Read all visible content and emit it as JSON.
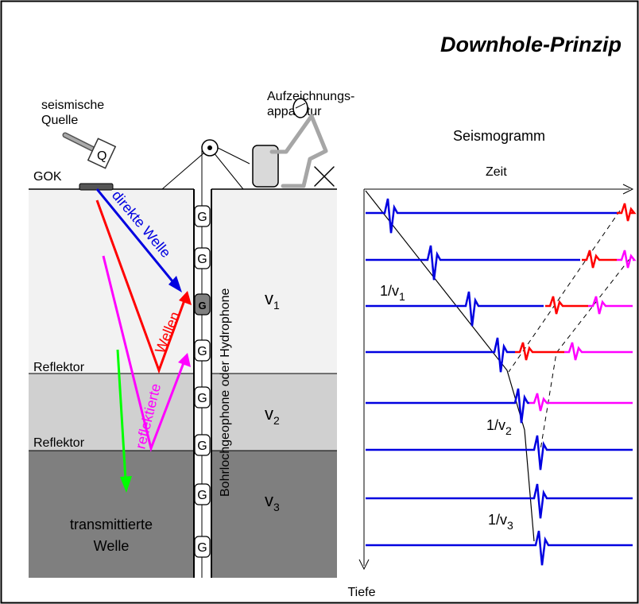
{
  "title": "Downhole-Prinzip",
  "source_label": {
    "line1": "seismische",
    "line2": "Quelle",
    "marker": "Q"
  },
  "recorder_label": {
    "line1": "Aufzeichnungs-",
    "line2": "apparatur"
  },
  "gok_label": "GOK",
  "reflector_label_1": "Reflektor",
  "reflector_label_2": "Reflektor",
  "direct_wave_label": "direkte Welle",
  "reflected_label_a": "Wellen",
  "reflected_label_b": "reflektierte",
  "transmitted_label": {
    "line1": "transmittierte",
    "line2": "Welle"
  },
  "borehole_label": "Bohrlochgeophone oder Hydrophone",
  "geophone_letter": "G",
  "layers": {
    "v1": {
      "base": "v",
      "sub": "1"
    },
    "v2": {
      "base": "v",
      "sub": "2"
    },
    "v3": {
      "base": "v",
      "sub": "3"
    }
  },
  "seismogram": {
    "title": "Seismogramm",
    "time_axis": "Zeit",
    "depth_axis": "Tiefe",
    "slope_labels": [
      {
        "base": "1/v",
        "sub": "1"
      },
      {
        "base": "1/v",
        "sub": "2"
      },
      {
        "base": "1/v",
        "sub": "3"
      }
    ]
  },
  "colors": {
    "direct": "#0000e0",
    "reflected": "#ff0000",
    "reflected2": "#ff00ff",
    "transmitted": "#00ff00",
    "layer1": "#f2f2f2",
    "layer2": "#d0d0d0",
    "layer3": "#7f7f7f",
    "active_geophone": "#808080"
  }
}
